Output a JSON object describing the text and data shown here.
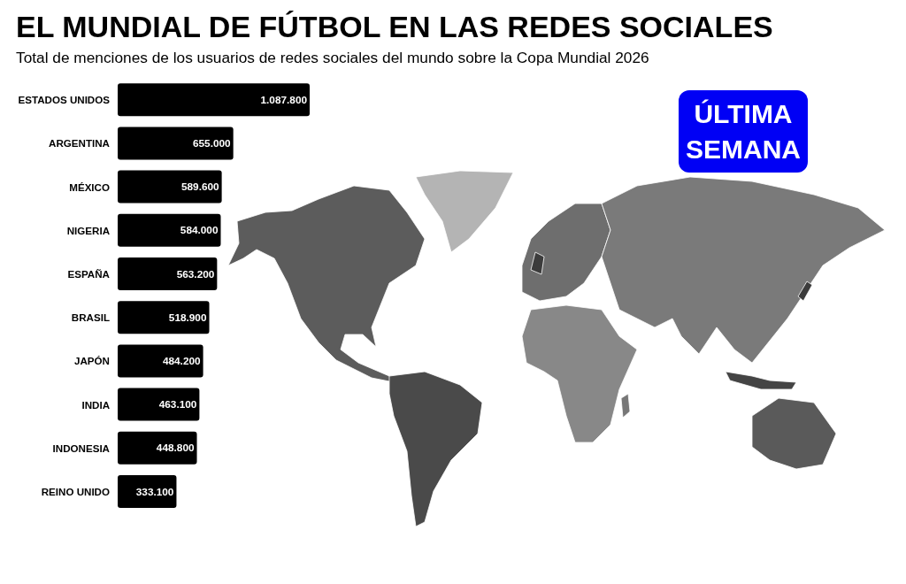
{
  "chart_data": {
    "type": "bar",
    "orientation": "horizontal",
    "title": "EL MUNDIAL DE FÚTBOL EN LAS REDES SOCIALES",
    "subtitle": "Total de menciones de los usuarios de redes sociales del mundo sobre la Copa Mundial 2026",
    "categories": [
      "ESTADOS UNIDOS",
      "ARGENTINA",
      "MÉXICO",
      "NIGERIA",
      "ESPAÑA",
      "BRASIL",
      "JAPÓN",
      "INDIA",
      "INDONESIA",
      "REINO UNIDO"
    ],
    "values": [
      1087800,
      655000,
      589600,
      584000,
      563200,
      518900,
      484200,
      463100,
      448800,
      333100
    ],
    "value_labels": [
      "1.087.800",
      "655.000",
      "589.600",
      "584.000",
      "563.200",
      "518.900",
      "484.200",
      "463.100",
      "448.800",
      "333.100"
    ],
    "color": "#000000",
    "annotations": [
      "ÚLTIMA SEMANA"
    ]
  }
}
